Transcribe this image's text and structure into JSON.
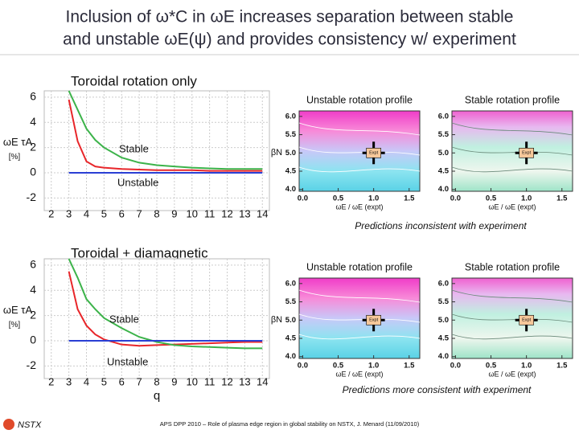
{
  "title": {
    "lines": [
      "Inclusion of ω*C in ωE increases separation between stable",
      "and unstable ωE(ψ) and provides consistency w/ experiment"
    ]
  },
  "chart_data": [
    {
      "type": "line",
      "title": "Toroidal rotation only",
      "ylabel": "ωE τA",
      "ylabel_unit": "[%]",
      "x": [
        3,
        3.5,
        4,
        4.5,
        5,
        6,
        7,
        8,
        9,
        10,
        11,
        12,
        13,
        14
      ],
      "series": [
        {
          "color": "#e8262a",
          "values": [
            5.8,
            2.5,
            0.9,
            0.5,
            0.4,
            0.3,
            0.25,
            0.2,
            0.2,
            0.2,
            0.15,
            0.15,
            0.15,
            0.15
          ]
        },
        {
          "color": "#3cb34a",
          "values": [
            6.5,
            5,
            3.5,
            2.6,
            2,
            1.2,
            0.8,
            0.6,
            0.5,
            0.4,
            0.35,
            0.3,
            0.3,
            0.3
          ]
        },
        {
          "color": "#2a3fd4",
          "values": [
            0,
            0,
            0,
            0,
            0,
            0,
            0,
            0,
            0,
            0,
            0,
            0,
            0,
            0
          ]
        }
      ],
      "annotations": [
        "Stable",
        "Unstable"
      ],
      "xlim": [
        1.6,
        14.4
      ],
      "xticks": [
        2,
        3,
        4,
        5,
        6,
        7,
        8,
        9,
        10,
        11,
        12,
        13,
        14
      ],
      "ylim": [
        -3,
        6.5
      ],
      "yticks": [
        -2,
        0,
        2,
        4,
        6
      ],
      "grid": true
    },
    {
      "type": "contour",
      "title": "Unstable rotation profile",
      "ylabel": "βN",
      "xlabel": "ωE / ωE (expt)",
      "field": "unstable",
      "xlim": [
        -0.05,
        1.65
      ],
      "xticks": [
        {
          "value": 0,
          "label": "0.0"
        },
        0.5,
        {
          "value": 1,
          "label": "1.0"
        },
        1.5
      ],
      "ylim": [
        3.95,
        6.15
      ],
      "yticks": [
        {
          "value": 4,
          "label": "4.0"
        },
        4.5,
        {
          "value": 5,
          "label": "5.0"
        },
        5.5,
        {
          "value": 6,
          "label": "6.0"
        }
      ],
      "expt": {
        "x": 1,
        "y": 5,
        "label": "Expt"
      }
    },
    {
      "type": "contour",
      "title": "Stable rotation profile",
      "xlabel": "ωE / ωE (expt)",
      "field": "stable",
      "xlim": [
        -0.05,
        1.65
      ],
      "xticks": [
        {
          "value": 0,
          "label": "0.0"
        },
        0.5,
        {
          "value": 1,
          "label": "1.0"
        },
        1.5
      ],
      "ylim": [
        3.95,
        6.15
      ],
      "yticks": [
        {
          "value": 4,
          "label": "4.0"
        },
        4.5,
        {
          "value": 5,
          "label": "5.0"
        },
        5.5,
        {
          "value": 6,
          "label": "6.0"
        }
      ],
      "expt": {
        "x": 1,
        "y": 5,
        "label": "Expt"
      }
    },
    {
      "type": "line",
      "title": "Toroidal + diamagnetic",
      "ylabel": "ωE τA",
      "ylabel_unit": "[%]",
      "xlabel": "q",
      "x": [
        3,
        3.5,
        4,
        4.5,
        5,
        6,
        7,
        8,
        9,
        10,
        11,
        12,
        13,
        14
      ],
      "series": [
        {
          "color": "#e8262a",
          "values": [
            5.5,
            2.5,
            1.2,
            0.5,
            0.1,
            -0.3,
            -0.4,
            -0.35,
            -0.3,
            -0.25,
            -0.2,
            -0.15,
            -0.1,
            -0.1
          ]
        },
        {
          "color": "#3cb34a",
          "values": [
            6.5,
            5,
            3.3,
            2.5,
            1.8,
            1,
            0.3,
            -0.1,
            -0.35,
            -0.45,
            -0.5,
            -0.55,
            -0.6,
            -0.6
          ]
        },
        {
          "color": "#2a3fd4",
          "values": [
            0,
            0,
            0,
            0,
            0,
            0,
            0,
            0,
            0,
            0,
            0,
            0,
            0,
            0
          ]
        }
      ],
      "annotations": [
        "Stable",
        "Unstable"
      ],
      "xlim": [
        1.6,
        14.4
      ],
      "xticks": [
        2,
        3,
        4,
        5,
        6,
        7,
        8,
        9,
        10,
        11,
        12,
        13,
        14
      ],
      "ylim": [
        -3,
        6.5
      ],
      "yticks": [
        -2,
        0,
        2,
        4,
        6
      ],
      "grid": true
    },
    {
      "type": "contour",
      "title": "Unstable rotation profile",
      "ylabel": "βN",
      "xlabel": "ωE / ωE (expt)",
      "field": "unstable",
      "xlim": [
        -0.05,
        1.65
      ],
      "xticks": [
        {
          "value": 0,
          "label": "0.0"
        },
        0.5,
        {
          "value": 1,
          "label": "1.0"
        },
        1.5
      ],
      "ylim": [
        3.95,
        6.15
      ],
      "yticks": [
        {
          "value": 4,
          "label": "4.0"
        },
        4.5,
        {
          "value": 5,
          "label": "5.0"
        },
        5.5,
        {
          "value": 6,
          "label": "6.0"
        }
      ],
      "expt": {
        "x": 1,
        "y": 5,
        "label": "Expt"
      }
    },
    {
      "type": "contour",
      "title": "Stable rotation profile",
      "xlabel": "ωE / ωE (expt)",
      "field": "stable",
      "xlim": [
        -0.05,
        1.65
      ],
      "xticks": [
        {
          "value": 0,
          "label": "0.0"
        },
        0.5,
        {
          "value": 1,
          "label": "1.0"
        },
        1.5
      ],
      "ylim": [
        3.95,
        6.15
      ],
      "yticks": [
        {
          "value": 4,
          "label": "4.0"
        },
        4.5,
        {
          "value": 5,
          "label": "5.0"
        },
        5.5,
        {
          "value": 6,
          "label": "6.0"
        }
      ],
      "expt": {
        "x": 1,
        "y": 5,
        "label": "Expt"
      }
    }
  ],
  "captions": [
    "Predictions inconsistent with experiment",
    "Predictions more consistent with experiment"
  ],
  "footer": {
    "logo": "NSTX",
    "text": "APS DPP 2010 – Role of plasma edge region in global stability on NSTX, J. Menard (11/09/2010)"
  }
}
